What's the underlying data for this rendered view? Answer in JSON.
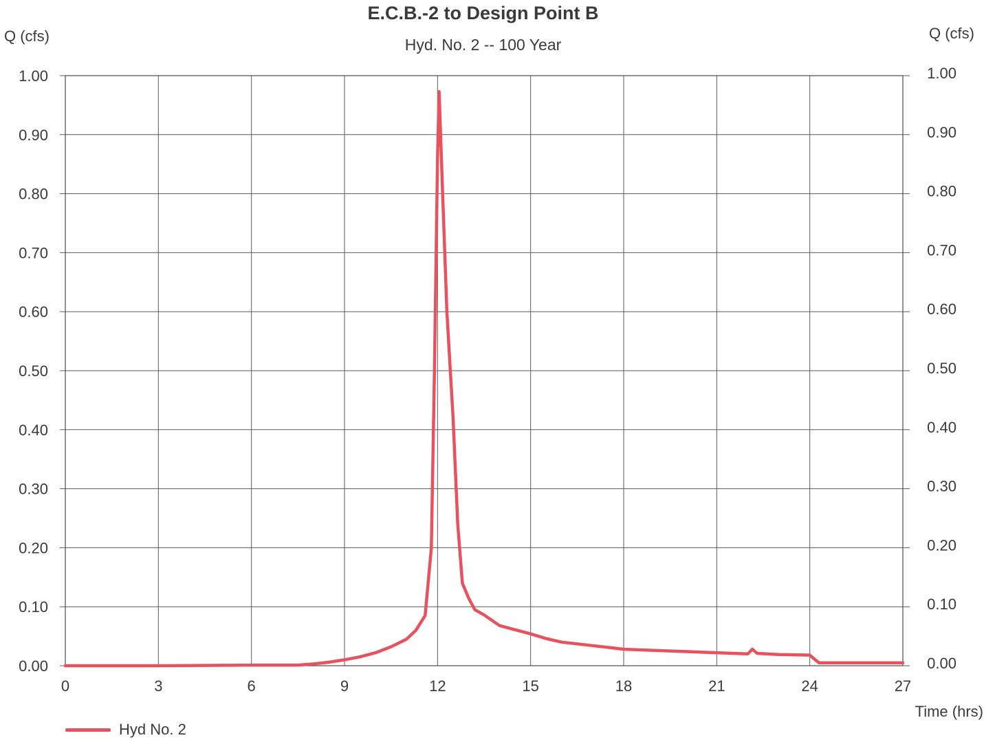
{
  "chart_data": {
    "type": "line",
    "title": "E.C.B.-2 to Design Point B",
    "subtitle": "Hyd. No. 2 -- 100 Year",
    "ylabel": "Q (cfs)",
    "ylabel_right": "Q (cfs)",
    "xlabel": "Time (hrs)",
    "xlim": [
      0,
      27
    ],
    "ylim": [
      0,
      1.0
    ],
    "x_ticks": [
      "0",
      "3",
      "6",
      "9",
      "12",
      "15",
      "18",
      "21",
      "24",
      "27"
    ],
    "y_ticks": [
      "0.00",
      "0.10",
      "0.20",
      "0.30",
      "0.40",
      "0.50",
      "0.60",
      "0.70",
      "0.80",
      "0.90",
      "1.00"
    ],
    "grid": true,
    "legend": "bottom-left",
    "series": [
      {
        "name": "Hyd No. 2",
        "color": "#e8525e",
        "x": [
          0,
          3,
          6,
          7.5,
          8,
          8.5,
          9,
          9.5,
          10,
          10.5,
          11,
          11.3,
          11.6,
          11.8,
          11.9,
          12.0,
          12.05,
          12.15,
          12.3,
          12.5,
          12.65,
          12.8,
          13.0,
          13.2,
          13.5,
          14,
          14.5,
          15,
          15.5,
          16,
          17,
          18,
          19,
          20,
          21,
          22,
          22.15,
          22.3,
          23,
          24,
          24.2,
          24.3,
          25,
          26,
          27
        ],
        "y": [
          0.0,
          0.0,
          0.001,
          0.001,
          0.003,
          0.006,
          0.01,
          0.015,
          0.022,
          0.032,
          0.045,
          0.06,
          0.085,
          0.2,
          0.5,
          0.86,
          0.973,
          0.82,
          0.6,
          0.42,
          0.24,
          0.14,
          0.115,
          0.095,
          0.086,
          0.068,
          0.061,
          0.054,
          0.046,
          0.04,
          0.034,
          0.028,
          0.026,
          0.024,
          0.022,
          0.02,
          0.028,
          0.021,
          0.019,
          0.018,
          0.009,
          0.005,
          0.005,
          0.005,
          0.005
        ]
      }
    ]
  }
}
